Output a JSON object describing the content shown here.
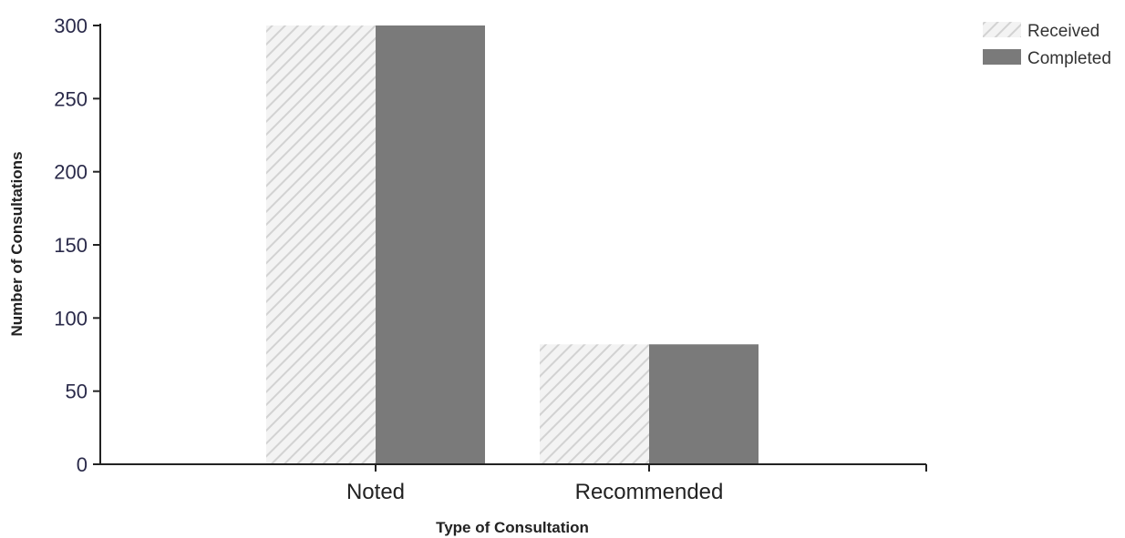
{
  "chart_data": {
    "type": "bar",
    "categories": [
      "Noted",
      "Recommended"
    ],
    "series": [
      {
        "name": "Received",
        "values": [
          300,
          82
        ],
        "color": "#dcdcdc",
        "pattern": "diagonal-hatch"
      },
      {
        "name": "Completed",
        "values": [
          300,
          82
        ],
        "color": "#7a7a7a",
        "pattern": "solid"
      }
    ],
    "xlabel": "Type of Consultation",
    "ylabel": "Number of Consultations",
    "ylim": [
      0,
      300
    ],
    "yticks": [
      "0",
      "50",
      "100",
      "150",
      "200",
      "250",
      "300"
    ],
    "grid": false,
    "legend_position": "top-right"
  }
}
